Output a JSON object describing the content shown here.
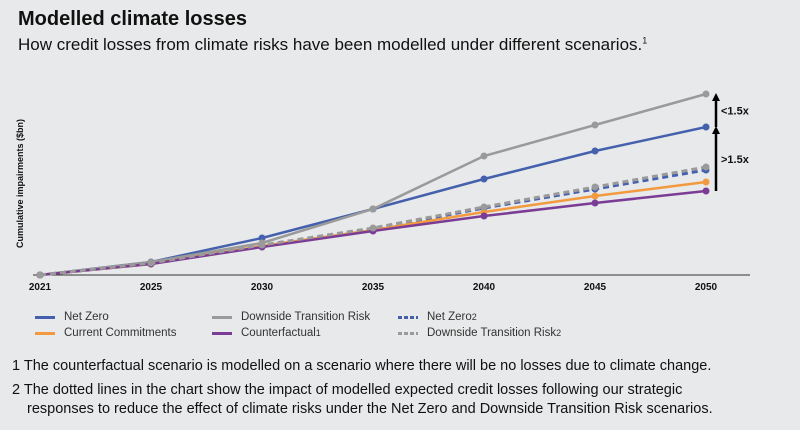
{
  "title": "Modelled climate losses",
  "subtitle": "How credit losses from climate risks have been modelled under different scenarios.",
  "subtitle_sup": "1",
  "footnotes": [
    "1 The counterfactual scenario is modelled on a scenario where there will be no losses due to climate change.",
    "2 The dotted lines in the chart show the impact of modelled expected credit losses following our strategic",
    "responses to reduce the effect of climate risks under the Net Zero and Downside Transition Risk scenarios."
  ],
  "chart_data": {
    "type": "line",
    "ylabel": "Cumulative impairments ($bn)",
    "xlabel": "",
    "categories": [
      "2021",
      "2025",
      "2030",
      "2035",
      "2040",
      "2045",
      "2050"
    ],
    "ylim": [
      0,
      200
    ],
    "grid": false,
    "legend_placement": "bottom",
    "series": [
      {
        "name": "Net Zero",
        "sup": "",
        "color": "#4561ad",
        "dashed": false,
        "values": [
          0,
          13,
          37,
          66,
          96,
          124,
          148
        ]
      },
      {
        "name": "Downside Transition Risk",
        "sup": "",
        "color": "#9a9a9a",
        "dashed": false,
        "values": [
          0,
          13,
          32,
          66,
          119,
          150,
          181
        ]
      },
      {
        "name": "Net Zero",
        "sup": "2",
        "color": "#4561ad",
        "dashed": true,
        "values": [
          0,
          12,
          29,
          46,
          67,
          86,
          105
        ]
      },
      {
        "name": "Current Commitments",
        "sup": "",
        "color": "#f29a3f",
        "dashed": false,
        "values": [
          0,
          11,
          29,
          45,
          63,
          79,
          93
        ]
      },
      {
        "name": "Counterfactual",
        "sup": "1",
        "color": "#7b3c96",
        "dashed": false,
        "values": [
          0,
          11,
          28,
          44,
          59,
          72,
          84
        ]
      },
      {
        "name": "Downside Transition Risk",
        "sup": "2",
        "color": "#9a9a9a",
        "dashed": true,
        "values": [
          0,
          12,
          30,
          47,
          68,
          88,
          108
        ]
      }
    ],
    "annotations": [
      {
        "text": "<1.5x",
        "from": 148,
        "to": 181
      },
      {
        "text": ">1.5x",
        "from": 84,
        "to": 148
      }
    ]
  }
}
